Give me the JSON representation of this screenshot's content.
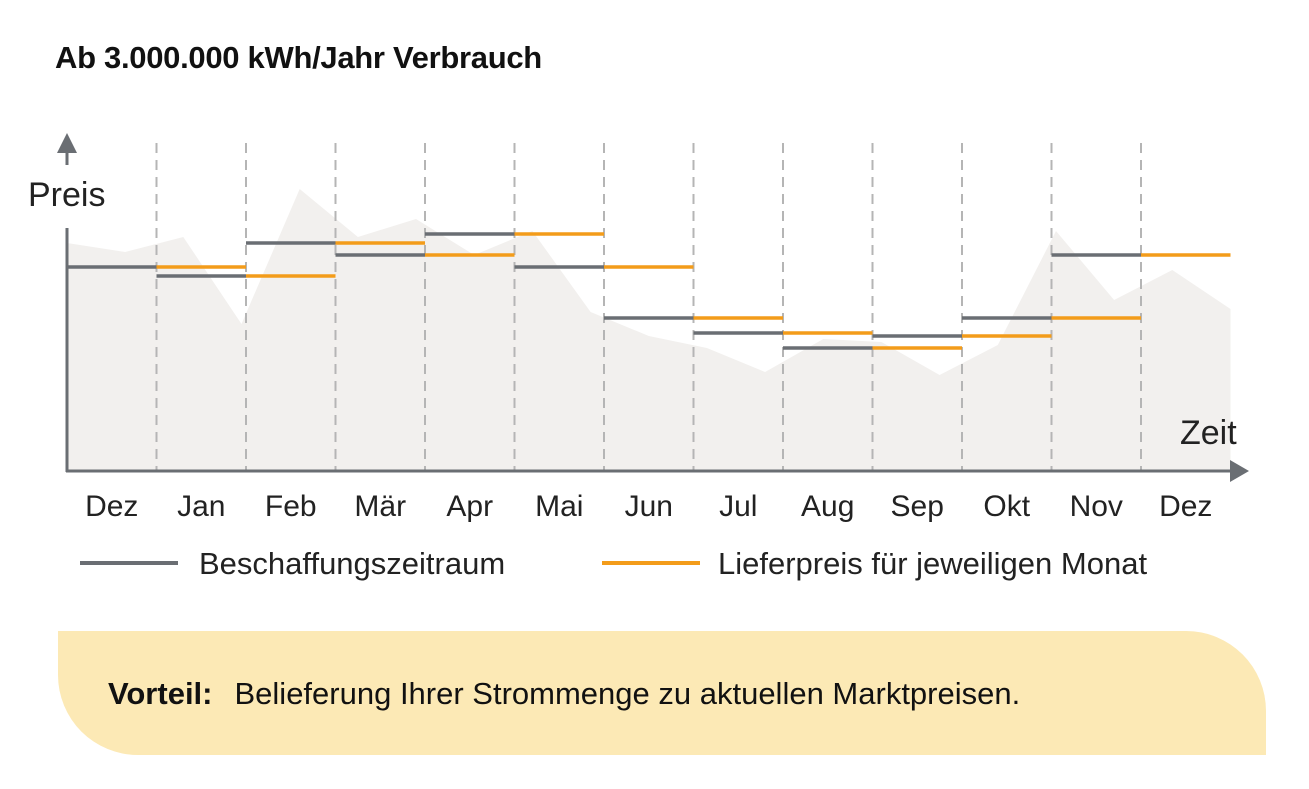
{
  "title": "Ab 3.000.000 kWh/Jahr Verbrauch",
  "chart_data": {
    "type": "line",
    "y_axis_label": "Preis",
    "x_axis_label": "Zeit",
    "categories": [
      "Dez",
      "Jan",
      "Feb",
      "Mär",
      "Apr",
      "Mai",
      "Jun",
      "Jul",
      "Aug",
      "Sep",
      "Okt",
      "Nov",
      "Dez"
    ],
    "ylim": [
      0,
      100
    ],
    "grid": "vertical dashed between months",
    "legend_position": "bottom",
    "series": [
      {
        "name": "Beschaffungszeitraum",
        "color": "#6a6e73",
        "style": "step",
        "values": [
          68,
          65,
          76,
          72,
          79,
          68,
          51,
          46,
          41,
          45,
          51,
          72,
          null
        ]
      },
      {
        "name": "Lieferpreis für jeweiligen Monat",
        "color": "#f39c1a",
        "style": "step",
        "values": [
          null,
          68,
          65,
          76,
          72,
          79,
          68,
          51,
          46,
          41,
          45,
          51,
          72
        ]
      }
    ],
    "background_market_area": {
      "color": "#f2f0ee",
      "values": [
        76,
        73,
        78,
        49,
        94,
        78,
        84,
        72,
        80,
        53,
        45,
        41,
        33,
        44,
        43,
        32,
        42,
        80,
        57,
        67,
        54
      ]
    }
  },
  "legend": {
    "item1": "Beschaffungszeitraum",
    "item2": "Lieferpreis für jeweiligen Monat"
  },
  "callout": {
    "label": "Vorteil:",
    "text": "Belieferung Ihrer Strommenge zu aktuellen Marktpreisen."
  }
}
